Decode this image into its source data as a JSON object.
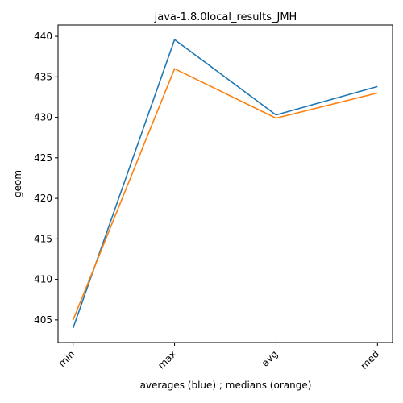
{
  "chart_data": {
    "type": "line",
    "title": "java-1.8.0local_results_JMH",
    "xlabel": "averages (blue) ; medians (orange)",
    "ylabel": "geom",
    "categories": [
      "min",
      "max",
      "avg",
      "med"
    ],
    "series": [
      {
        "values": [
          404.0,
          439.6,
          430.3,
          433.8
        ],
        "color": "#1f77b4"
      },
      {
        "values": [
          405.0,
          436.0,
          429.9,
          433.0
        ],
        "color": "#ff7f0e"
      }
    ],
    "ylim": [
      402.2,
      441.4
    ],
    "yticks": [
      405,
      410,
      415,
      420,
      425,
      430,
      435,
      440
    ],
    "grid": false,
    "legend": "none"
  }
}
